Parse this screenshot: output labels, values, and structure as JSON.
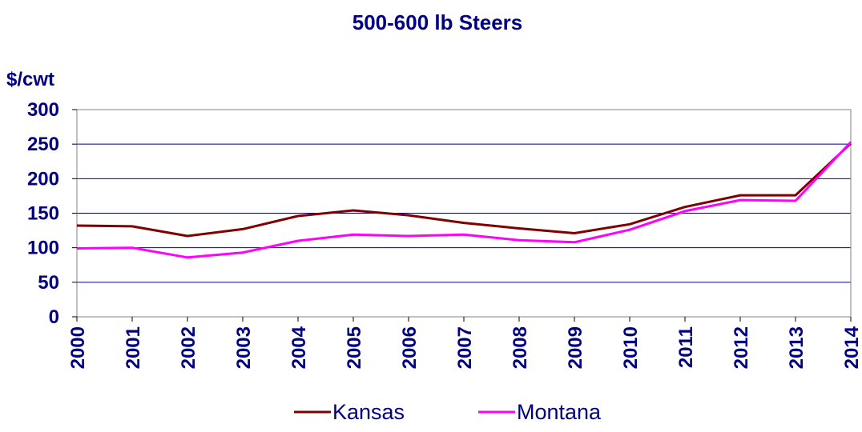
{
  "chart_data": {
    "type": "line",
    "title": "500-600 lb Steers",
    "ylabel": "$/cwt",
    "xlabel": "",
    "ylim": [
      0,
      300
    ],
    "yticks": [
      0,
      50,
      100,
      150,
      200,
      250,
      300
    ],
    "grid": "horizontal",
    "legend_position": "bottom",
    "categories": [
      "2000",
      "2001",
      "2002",
      "2003",
      "2004",
      "2005",
      "2006",
      "2007",
      "2008",
      "2009",
      "2010",
      "2011",
      "2012",
      "2013",
      "2014"
    ],
    "series": [
      {
        "name": "Kansas",
        "color": "#800000",
        "values": [
          132,
          131,
          117,
          127,
          146,
          154,
          147,
          136,
          128,
          121,
          134,
          159,
          176,
          176,
          251
        ]
      },
      {
        "name": "Montana",
        "color": "#ff00ff",
        "values": [
          99,
          100,
          86,
          93,
          110,
          119,
          117,
          119,
          111,
          108,
          126,
          153,
          169,
          168,
          253
        ]
      }
    ]
  }
}
